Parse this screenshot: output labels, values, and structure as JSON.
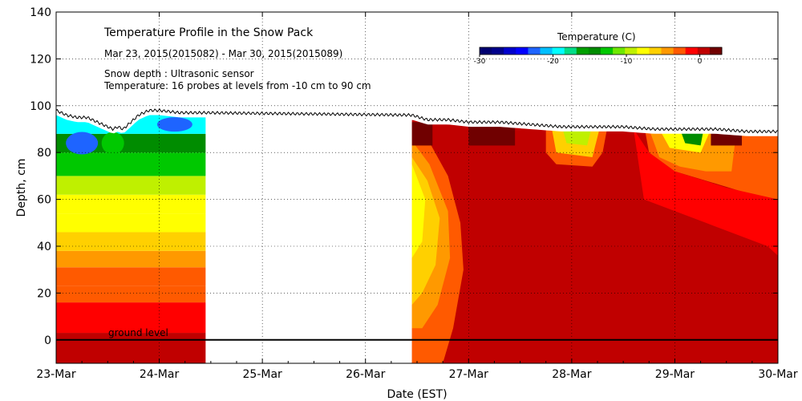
{
  "chart_data": {
    "type": "heatmap",
    "title": "Temperature Profile in the Snow Pack",
    "date_range": "Mar 23, 2015(2015082) - Mar 30, 2015(2015089)",
    "snow_note": "Snow depth : Ultrasonic sensor",
    "temp_note": "Temperature: 16 probes at levels from -10 cm to 90 cm",
    "xlabel": "Date (EST)",
    "ylabel": "Depth, cm",
    "ground_label": "ground level",
    "x_ticks": [
      "23-Mar",
      "24-Mar",
      "25-Mar",
      "26-Mar",
      "27-Mar",
      "28-Mar",
      "29-Mar",
      "30-Mar"
    ],
    "xlim": [
      0,
      7
    ],
    "ylim": [
      -10,
      140
    ],
    "y_ticks": [
      0,
      20,
      40,
      60,
      80,
      100,
      120,
      140
    ],
    "colorbar": {
      "title": "Temperature (C)",
      "range": [
        -30,
        3
      ],
      "ticks": [
        -30,
        -20,
        -10,
        0
      ],
      "colors": [
        "#000070",
        "#00008b",
        "#0000cd",
        "#0000ff",
        "#1e64ff",
        "#00bfff",
        "#00ffff",
        "#00dd88",
        "#00a000",
        "#008c00",
        "#00c800",
        "#6ee800",
        "#bff000",
        "#ffff00",
        "#ffd000",
        "#ff9900",
        "#ff5a00",
        "#ff0000",
        "#c00000",
        "#700000"
      ]
    },
    "data_gap": [
      1.45,
      3.45
    ],
    "snow_depth": {
      "x": [
        0.0,
        0.1,
        0.2,
        0.3,
        0.35,
        0.45,
        0.55,
        0.6,
        0.65,
        0.7,
        0.8,
        0.85,
        0.9,
        1.0,
        1.2,
        1.45,
        3.45,
        3.6,
        3.8,
        4.0,
        4.3,
        4.6,
        4.9,
        5.2,
        5.5,
        5.8,
        6.1,
        6.4,
        6.7,
        7.0
      ],
      "y": [
        98,
        96,
        95,
        95,
        94,
        92,
        90,
        91,
        90,
        92,
        96,
        97,
        98,
        98,
        97,
        97,
        96,
        94,
        94,
        93,
        93,
        92,
        91,
        91,
        91,
        90,
        90,
        90,
        89,
        89
      ]
    },
    "color_bands_left": [
      {
        "temp": 0,
        "top": -10,
        "bottom": 3
      },
      {
        "temp": -1,
        "top": 3,
        "bottom": 16
      },
      {
        "temp": -2,
        "top": 16,
        "bottom": 23
      },
      {
        "temp": -3,
        "top": 23,
        "bottom": 31
      },
      {
        "temp": -4,
        "top": 31,
        "bottom": 38
      },
      {
        "temp": -6,
        "top": 38,
        "bottom": 46
      },
      {
        "temp": -7,
        "top": 46,
        "bottom": 54
      },
      {
        "temp": -8,
        "top": 54,
        "bottom": 62
      },
      {
        "temp": -10,
        "top": 62,
        "bottom": 70
      },
      {
        "temp": -12,
        "top": 70,
        "bottom": 80
      },
      {
        "temp": -15,
        "top": 80,
        "bottom": 88
      },
      {
        "temp": -20,
        "top": 88,
        "bottom": 96
      }
    ]
  }
}
